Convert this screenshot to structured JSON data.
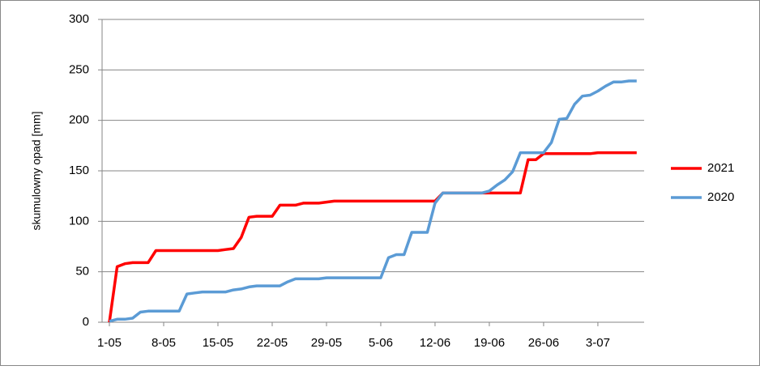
{
  "chart_data": {
    "type": "line",
    "y_label": "skumulowny opad  [mm]",
    "categories": [
      "1-05",
      null,
      null,
      null,
      null,
      null,
      null,
      "8-05",
      null,
      null,
      null,
      null,
      null,
      null,
      "15-05",
      null,
      null,
      null,
      null,
      null,
      null,
      "22-05",
      null,
      null,
      null,
      null,
      null,
      null,
      "29-05",
      null,
      null,
      null,
      null,
      null,
      null,
      "5-06",
      null,
      null,
      null,
      null,
      null,
      null,
      "12-06",
      null,
      null,
      null,
      null,
      null,
      null,
      "19-06",
      null,
      null,
      null,
      null,
      null,
      null,
      "26-06",
      null,
      null,
      null,
      null,
      null,
      null,
      "3-07",
      null,
      null,
      null,
      null,
      null
    ],
    "series": [
      {
        "name": "2021",
        "color": "#ff0000",
        "values": [
          0,
          55,
          58,
          59,
          59,
          59,
          71,
          71,
          71,
          71,
          71,
          71,
          71,
          71,
          71,
          72,
          73,
          84,
          104,
          105,
          105,
          105,
          116,
          116,
          116,
          118,
          118,
          118,
          119,
          120,
          120,
          120,
          120,
          120,
          120,
          120,
          120,
          120,
          120,
          120,
          120,
          120,
          120,
          128,
          128,
          128,
          128,
          128,
          128,
          128,
          128,
          128,
          128,
          128,
          161,
          161,
          167,
          167,
          167,
          167,
          167,
          167,
          167,
          168,
          168,
          168,
          168,
          168,
          168
        ]
      },
      {
        "name": "2020",
        "color": "#5b9bd5",
        "values": [
          1,
          3,
          3,
          4,
          10,
          11,
          11,
          11,
          11,
          11,
          28,
          29,
          30,
          30,
          30,
          30,
          32,
          33,
          35,
          36,
          36,
          36,
          36,
          40,
          43,
          43,
          43,
          43,
          44,
          44,
          44,
          44,
          44,
          44,
          44,
          44,
          64,
          67,
          67,
          89,
          89,
          89,
          118,
          128,
          128,
          128,
          128,
          128,
          128,
          130,
          136,
          141,
          149,
          168,
          168,
          168,
          168,
          178,
          201,
          202,
          216,
          224,
          225,
          229,
          234,
          238,
          238,
          239,
          239
        ]
      }
    ],
    "ylim": [
      0,
      300
    ],
    "yticks": [
      0,
      50,
      100,
      150,
      200,
      250,
      300
    ],
    "grid": true,
    "legend": "right"
  }
}
